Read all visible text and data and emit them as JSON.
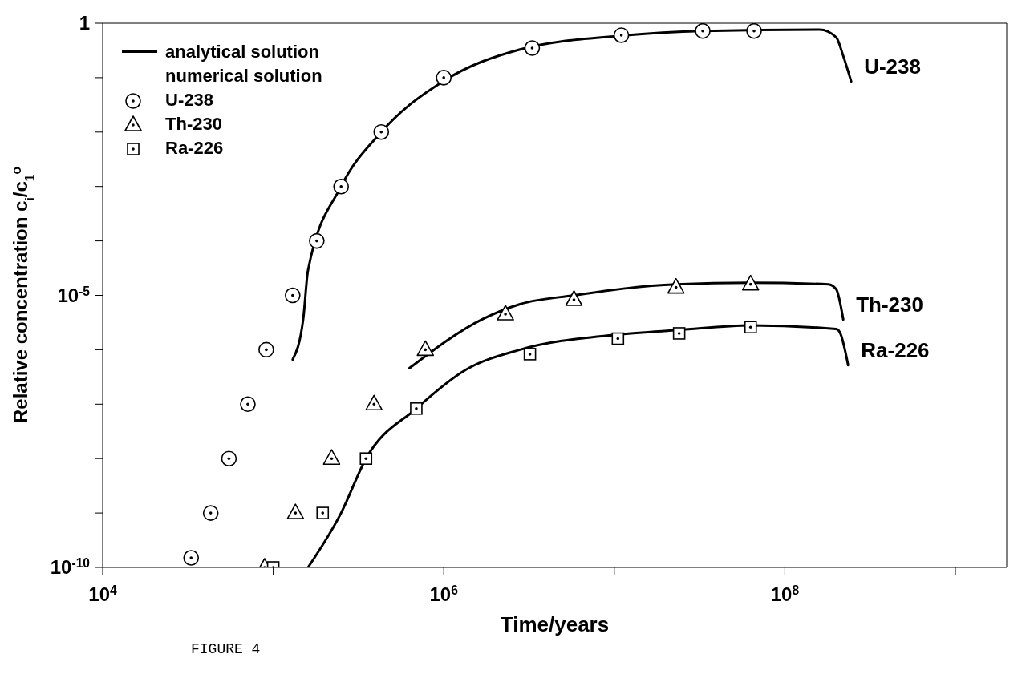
{
  "chart_data": {
    "type": "scatter",
    "xlabel": "Time/years",
    "ylabel": "Relative concentration  c$_{i}$/c$_{1}$$^{o}$",
    "legend_title": "numerical solution",
    "annotations": [
      "analytical solution",
      "FIGURE  4"
    ],
    "log": "xy",
    "grid": false,
    "legend": "top left",
    "xlim": [
      10000,
      2000000000
    ],
    "xticks": [
      {
        "value": 10000,
        "label": "10$^{4}$"
      },
      {
        "value": 100000,
        "label": null
      },
      {
        "value": 1000000,
        "label": "10$^{6}$"
      },
      {
        "value": 10000000,
        "label": null
      },
      {
        "value": 100000000,
        "label": "10$^{8}$"
      },
      {
        "value": 1000000000,
        "label": null
      }
    ],
    "ylim": [
      1e-10,
      1
    ],
    "yticks": [
      {
        "value": 1e-10,
        "label": "10$^{-10}$"
      },
      {
        "value": 1e-09,
        "label": null
      },
      {
        "value": 1e-08,
        "label": null
      },
      {
        "value": 1e-07,
        "label": null
      },
      {
        "value": 1e-06,
        "label": null
      },
      {
        "value": 1e-05,
        "label": "10$^{-5}$"
      },
      {
        "value": 0.0001,
        "label": null
      },
      {
        "value": 0.001,
        "label": null
      },
      {
        "value": 0.01,
        "label": null
      },
      {
        "value": 0.1,
        "label": null
      },
      1
    ],
    "series": [
      {
        "name": "U-238",
        "type": "line",
        "color": "#000000",
        "x": [
          130000,
          150000,
          160000,
          250000,
          430000,
          1000000,
          2800000,
          11000000,
          33000000,
          160000000,
          200000000,
          220000000,
          245000000
        ],
        "values": [
          6.6e-07,
          3.7e-06,
          2.9e-05,
          0.001,
          0.01,
          0.087,
          0.33,
          0.59,
          0.72,
          0.76,
          0.55,
          0.25,
          0.085
        ]
      },
      {
        "name": "Th-230",
        "type": "line",
        "color": "#000000",
        "x": [
          630000,
          1700000,
          2800000,
          5800000,
          23000000,
          63000000,
          180000000,
          200000000,
          220000000
        ],
        "values": [
          4.6e-07,
          3.7e-06,
          6.9e-06,
          1e-05,
          1.6e-05,
          1.7e-05,
          1.6e-05,
          1.3e-05,
          3.6e-06
        ]
      },
      {
        "name": "Ra-226",
        "type": "line",
        "color": "#000000",
        "x": [
          160000,
          250000,
          350000,
          690000,
          1350000,
          2800000,
          10500000,
          24000000,
          63000000,
          200000000,
          210000000,
          235000000
        ],
        "values": [
          1e-10,
          1e-09,
          1e-08,
          8.3e-08,
          4.3e-07,
          1e-06,
          1.9e-06,
          2.3e-06,
          2.8e-06,
          2.4e-06,
          2.1e-06,
          5.2e-07
        ]
      },
      {
        "name": "U-238",
        "marker": "circle",
        "color": "#000000",
        "x": [
          33000,
          43000,
          55000,
          71000,
          91000,
          130000,
          180000,
          250000,
          430000,
          1000000,
          3300000,
          11000000,
          33000000,
          66000000
        ],
        "values": [
          1.5e-10,
          1e-09,
          1e-08,
          1e-07,
          1e-06,
          1e-05,
          0.0001,
          0.001,
          0.01,
          0.1,
          0.35,
          0.6,
          0.72,
          0.72
        ]
      },
      {
        "name": "Th-230",
        "marker": "triangle",
        "color": "#000000",
        "x": [
          89000,
          135000,
          220000,
          390000,
          780000,
          2300000,
          5800000,
          23000000,
          63000000
        ],
        "values": [
          1e-10,
          1e-09,
          1e-08,
          1e-07,
          1e-06,
          4.5e-06,
          8.3e-06,
          1.4e-05,
          1.6e-05
        ]
      },
      {
        "name": "Ra-226",
        "marker": "square",
        "color": "#000000",
        "x": [
          100000,
          195000,
          350000,
          690000,
          3200000,
          10500000,
          24000000,
          63000000
        ],
        "values": [
          1e-10,
          1e-09,
          1e-08,
          8.3e-08,
          8.3e-07,
          1.6e-06,
          2e-06,
          2.6e-06
        ]
      }
    ]
  }
}
